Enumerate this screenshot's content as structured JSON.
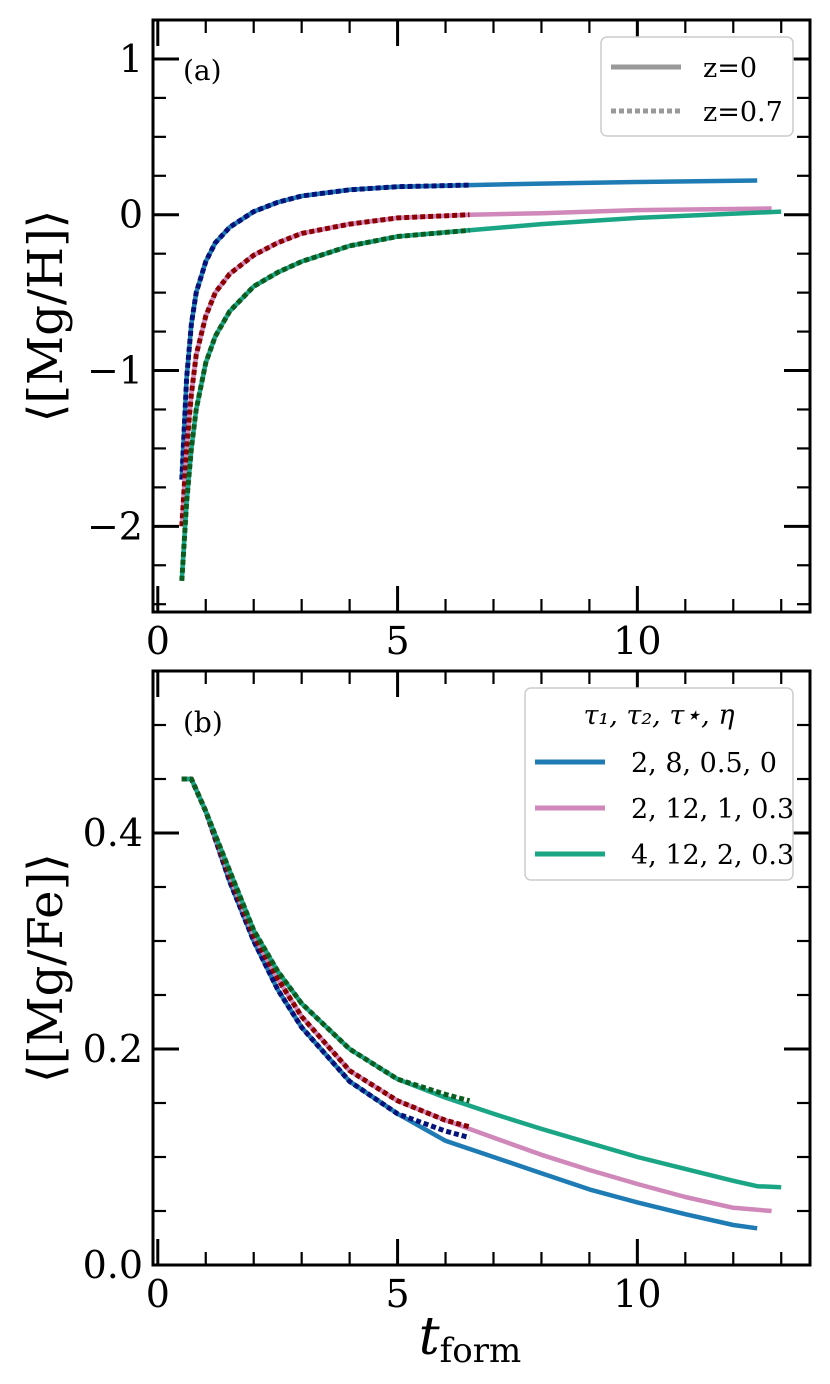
{
  "chart_data": [
    {
      "type": "line",
      "panel_label": "(a)",
      "ylabel": "⟨[Mg/H]⟩",
      "xlabel": "",
      "xlim": [
        -0.1,
        13.6
      ],
      "ylim": [
        -2.55,
        1.25
      ],
      "xticks": [
        0,
        5,
        10
      ],
      "yticks": [
        -2,
        -1,
        0,
        1
      ],
      "ytick_labels": [
        "−2",
        "−1",
        "0",
        "1"
      ],
      "legend": {
        "placement": "top-right",
        "entries": [
          {
            "label": "z=0",
            "style": "solid",
            "color": "#999999"
          },
          {
            "label": "z=0.7",
            "style": "dotted",
            "color": "#999999"
          }
        ]
      },
      "series": [
        {
          "color": "#1f7bb4",
          "style": "solid",
          "x": [
            0.5,
            0.6,
            0.7,
            0.8,
            1.0,
            1.2,
            1.5,
            2.0,
            2.5,
            3.0,
            4.0,
            5.0,
            6.5,
            8.0,
            10.0,
            12.5
          ],
          "y": [
            -1.7,
            -1.05,
            -0.7,
            -0.5,
            -0.3,
            -0.18,
            -0.08,
            0.02,
            0.08,
            0.12,
            0.16,
            0.18,
            0.19,
            0.2,
            0.21,
            0.22
          ]
        },
        {
          "color": "#05127a",
          "style": "dotted",
          "x": [
            0.5,
            0.6,
            0.7,
            0.8,
            1.0,
            1.2,
            1.5,
            2.0,
            2.5,
            3.0,
            4.0,
            5.0,
            6.5
          ],
          "y": [
            -1.7,
            -1.05,
            -0.7,
            -0.5,
            -0.3,
            -0.18,
            -0.08,
            0.02,
            0.08,
            0.12,
            0.16,
            0.18,
            0.19
          ]
        },
        {
          "color": "#d087ba",
          "style": "solid",
          "x": [
            0.5,
            0.6,
            0.7,
            0.8,
            1.0,
            1.2,
            1.5,
            2.0,
            2.5,
            3.0,
            4.0,
            5.0,
            6.5,
            8.0,
            10.0,
            12.8
          ],
          "y": [
            -2.0,
            -1.5,
            -1.15,
            -0.9,
            -0.65,
            -0.5,
            -0.38,
            -0.26,
            -0.18,
            -0.12,
            -0.06,
            -0.02,
            0.0,
            0.01,
            0.03,
            0.04
          ]
        },
        {
          "color": "#8b0000",
          "style": "dotted",
          "x": [
            0.5,
            0.6,
            0.7,
            0.8,
            1.0,
            1.2,
            1.5,
            2.0,
            2.5,
            3.0,
            4.0,
            5.0,
            6.5
          ],
          "y": [
            -2.0,
            -1.5,
            -1.15,
            -0.9,
            -0.65,
            -0.5,
            -0.38,
            -0.26,
            -0.18,
            -0.12,
            -0.06,
            -0.02,
            0.0
          ]
        },
        {
          "color": "#1aa585",
          "style": "solid",
          "x": [
            0.5,
            0.6,
            0.7,
            0.8,
            1.0,
            1.2,
            1.5,
            2.0,
            2.5,
            3.0,
            4.0,
            5.0,
            6.5,
            8.0,
            10.0,
            13.0
          ],
          "y": [
            -2.35,
            -1.85,
            -1.5,
            -1.25,
            -0.95,
            -0.78,
            -0.62,
            -0.46,
            -0.37,
            -0.3,
            -0.2,
            -0.14,
            -0.1,
            -0.06,
            -0.02,
            0.02
          ]
        },
        {
          "color": "#0c5c1f",
          "style": "dotted",
          "x": [
            0.5,
            0.6,
            0.7,
            0.8,
            1.0,
            1.2,
            1.5,
            2.0,
            2.5,
            3.0,
            4.0,
            5.0,
            6.5
          ],
          "y": [
            -2.35,
            -1.85,
            -1.5,
            -1.25,
            -0.95,
            -0.78,
            -0.62,
            -0.46,
            -0.37,
            -0.3,
            -0.2,
            -0.14,
            -0.1
          ]
        }
      ]
    },
    {
      "type": "line",
      "panel_label": "(b)",
      "ylabel": "⟨[Mg/Fe]⟩",
      "xlabel": "t",
      "xlabel_sub": "form",
      "xlim": [
        -0.1,
        13.6
      ],
      "ylim": [
        0.0,
        0.55
      ],
      "xticks": [
        0,
        5,
        10
      ],
      "yticks": [
        0.0,
        0.2,
        0.4
      ],
      "ytick_labels": [
        "0.0",
        "0.2",
        "0.4"
      ],
      "legend": {
        "placement": "top-right",
        "title": "τ₁, τ₂, τ⋆, η",
        "entries": [
          {
            "label": "2, 8, 0.5, 0",
            "style": "solid",
            "color": "#1f7bb4"
          },
          {
            "label": "2, 12, 1, 0.3",
            "style": "solid",
            "color": "#d087ba"
          },
          {
            "label": "4, 12, 2, 0.3",
            "style": "solid",
            "color": "#1aa585"
          }
        ]
      },
      "series": [
        {
          "color": "#1f7bb4",
          "style": "solid",
          "x": [
            0.5,
            0.7,
            0.8,
            1.0,
            1.5,
            2.0,
            2.5,
            3.0,
            4.0,
            5.0,
            6.0,
            7.0,
            8.0,
            9.0,
            10.0,
            11.0,
            12.0,
            12.5
          ],
          "y": [
            0.45,
            0.45,
            0.44,
            0.42,
            0.355,
            0.3,
            0.255,
            0.22,
            0.17,
            0.14,
            0.115,
            0.1,
            0.085,
            0.07,
            0.058,
            0.047,
            0.037,
            0.034
          ]
        },
        {
          "color": "#05127a",
          "style": "dotted",
          "x": [
            0.5,
            0.7,
            0.8,
            1.0,
            1.5,
            2.0,
            2.5,
            3.0,
            4.0,
            5.0,
            6.0,
            6.5
          ],
          "y": [
            0.45,
            0.45,
            0.44,
            0.42,
            0.355,
            0.3,
            0.255,
            0.22,
            0.17,
            0.14,
            0.124,
            0.118
          ]
        },
        {
          "color": "#d087ba",
          "style": "solid",
          "x": [
            0.5,
            0.7,
            0.8,
            1.0,
            1.5,
            2.0,
            2.5,
            3.0,
            4.0,
            5.0,
            6.0,
            7.0,
            8.0,
            9.0,
            10.0,
            11.0,
            12.0,
            12.8
          ],
          "y": [
            0.45,
            0.45,
            0.44,
            0.42,
            0.36,
            0.305,
            0.265,
            0.23,
            0.18,
            0.152,
            0.134,
            0.118,
            0.102,
            0.088,
            0.075,
            0.063,
            0.053,
            0.05
          ]
        },
        {
          "color": "#8b0000",
          "style": "dotted",
          "x": [
            0.5,
            0.7,
            0.8,
            1.0,
            1.5,
            2.0,
            2.5,
            3.0,
            4.0,
            5.0,
            6.0,
            6.5
          ],
          "y": [
            0.45,
            0.45,
            0.44,
            0.42,
            0.36,
            0.305,
            0.265,
            0.23,
            0.18,
            0.152,
            0.134,
            0.128
          ]
        },
        {
          "color": "#1aa585",
          "style": "solid",
          "x": [
            0.5,
            0.7,
            0.8,
            1.0,
            1.5,
            2.0,
            2.5,
            3.0,
            4.0,
            5.0,
            6.0,
            7.0,
            8.0,
            9.0,
            10.0,
            11.0,
            12.0,
            12.5,
            13.0
          ],
          "y": [
            0.45,
            0.45,
            0.44,
            0.42,
            0.365,
            0.31,
            0.272,
            0.242,
            0.2,
            0.172,
            0.155,
            0.14,
            0.126,
            0.113,
            0.1,
            0.089,
            0.078,
            0.073,
            0.072
          ]
        },
        {
          "color": "#0c5c1f",
          "style": "dotted",
          "x": [
            0.5,
            0.7,
            0.8,
            1.0,
            1.5,
            2.0,
            2.5,
            3.0,
            4.0,
            5.0,
            6.0,
            6.5
          ],
          "y": [
            0.45,
            0.45,
            0.44,
            0.42,
            0.365,
            0.31,
            0.272,
            0.242,
            0.2,
            0.172,
            0.158,
            0.152
          ]
        }
      ]
    }
  ]
}
